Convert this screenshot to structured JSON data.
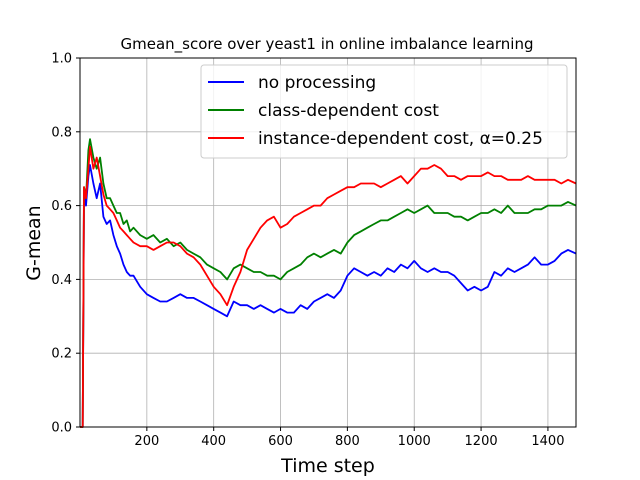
{
  "chart_data": {
    "type": "line",
    "title": "Gmean_score over yeast1 in online imbalance learning",
    "xlabel": "Time step",
    "ylabel": "G-mean",
    "xlim": [
      0,
      1484
    ],
    "ylim": [
      0.0,
      1.0
    ],
    "xticks": [
      200,
      400,
      600,
      800,
      1000,
      1200,
      1400
    ],
    "yticks": [
      0.0,
      0.2,
      0.4,
      0.6,
      0.8,
      1.0
    ],
    "grid": true,
    "legend_position": "top-right",
    "series": [
      {
        "name": "no processing",
        "color": "#0000ff",
        "x": [
          0,
          8,
          12,
          18,
          25,
          30,
          40,
          50,
          60,
          70,
          80,
          90,
          100,
          110,
          120,
          130,
          140,
          150,
          160,
          180,
          200,
          220,
          240,
          260,
          280,
          300,
          320,
          340,
          360,
          380,
          400,
          420,
          440,
          460,
          480,
          500,
          520,
          540,
          560,
          580,
          600,
          620,
          640,
          660,
          680,
          700,
          720,
          740,
          760,
          780,
          800,
          820,
          840,
          860,
          880,
          900,
          920,
          940,
          960,
          980,
          1000,
          1020,
          1040,
          1060,
          1080,
          1100,
          1120,
          1140,
          1160,
          1180,
          1200,
          1220,
          1240,
          1260,
          1280,
          1300,
          1320,
          1340,
          1360,
          1380,
          1400,
          1420,
          1440,
          1460,
          1484
        ],
        "y": [
          0.0,
          0.0,
          0.63,
          0.6,
          0.68,
          0.71,
          0.66,
          0.62,
          0.66,
          0.57,
          0.55,
          0.56,
          0.52,
          0.49,
          0.47,
          0.44,
          0.42,
          0.41,
          0.41,
          0.38,
          0.36,
          0.35,
          0.34,
          0.34,
          0.35,
          0.36,
          0.35,
          0.35,
          0.34,
          0.33,
          0.32,
          0.31,
          0.3,
          0.34,
          0.33,
          0.33,
          0.32,
          0.33,
          0.32,
          0.31,
          0.32,
          0.31,
          0.31,
          0.33,
          0.32,
          0.34,
          0.35,
          0.36,
          0.35,
          0.37,
          0.41,
          0.43,
          0.42,
          0.41,
          0.42,
          0.41,
          0.43,
          0.42,
          0.44,
          0.43,
          0.45,
          0.43,
          0.42,
          0.43,
          0.42,
          0.42,
          0.41,
          0.39,
          0.37,
          0.38,
          0.37,
          0.38,
          0.42,
          0.41,
          0.43,
          0.42,
          0.43,
          0.44,
          0.46,
          0.44,
          0.44,
          0.45,
          0.47,
          0.48,
          0.47
        ]
      },
      {
        "name": "class-dependent cost",
        "color": "#008000",
        "x": [
          0,
          8,
          12,
          18,
          25,
          30,
          40,
          50,
          60,
          70,
          80,
          90,
          100,
          110,
          120,
          130,
          140,
          150,
          160,
          180,
          200,
          220,
          240,
          260,
          280,
          300,
          320,
          340,
          360,
          380,
          400,
          420,
          440,
          460,
          480,
          500,
          520,
          540,
          560,
          580,
          600,
          620,
          640,
          660,
          680,
          700,
          720,
          740,
          760,
          780,
          800,
          820,
          840,
          860,
          880,
          900,
          920,
          940,
          960,
          980,
          1000,
          1020,
          1040,
          1060,
          1080,
          1100,
          1120,
          1140,
          1160,
          1180,
          1200,
          1220,
          1240,
          1260,
          1280,
          1300,
          1320,
          1340,
          1360,
          1380,
          1400,
          1420,
          1440,
          1460,
          1484
        ],
        "y": [
          0.0,
          0.0,
          0.65,
          0.62,
          0.75,
          0.78,
          0.73,
          0.7,
          0.73,
          0.66,
          0.62,
          0.62,
          0.6,
          0.58,
          0.58,
          0.55,
          0.56,
          0.53,
          0.54,
          0.52,
          0.51,
          0.52,
          0.5,
          0.51,
          0.49,
          0.5,
          0.48,
          0.47,
          0.46,
          0.44,
          0.43,
          0.42,
          0.4,
          0.43,
          0.44,
          0.43,
          0.42,
          0.42,
          0.41,
          0.41,
          0.4,
          0.42,
          0.43,
          0.44,
          0.46,
          0.47,
          0.46,
          0.47,
          0.48,
          0.47,
          0.5,
          0.52,
          0.53,
          0.54,
          0.55,
          0.56,
          0.56,
          0.57,
          0.58,
          0.59,
          0.58,
          0.59,
          0.6,
          0.58,
          0.58,
          0.58,
          0.57,
          0.57,
          0.56,
          0.57,
          0.58,
          0.58,
          0.59,
          0.58,
          0.6,
          0.58,
          0.58,
          0.58,
          0.59,
          0.59,
          0.6,
          0.6,
          0.6,
          0.61,
          0.6
        ]
      },
      {
        "name": "instance-dependent cost, α=0.25",
        "color": "#ff0000",
        "x": [
          0,
          8,
          12,
          18,
          25,
          30,
          40,
          50,
          60,
          70,
          80,
          90,
          100,
          110,
          120,
          130,
          140,
          150,
          160,
          180,
          200,
          220,
          240,
          260,
          280,
          300,
          320,
          340,
          360,
          380,
          400,
          420,
          440,
          460,
          480,
          500,
          520,
          540,
          560,
          580,
          600,
          620,
          640,
          660,
          680,
          700,
          720,
          740,
          760,
          780,
          800,
          820,
          840,
          860,
          880,
          900,
          920,
          940,
          960,
          980,
          1000,
          1020,
          1040,
          1060,
          1080,
          1100,
          1120,
          1140,
          1160,
          1180,
          1200,
          1220,
          1240,
          1260,
          1280,
          1300,
          1320,
          1340,
          1360,
          1380,
          1400,
          1420,
          1440,
          1460,
          1484
        ],
        "y": [
          0.0,
          0.0,
          0.65,
          0.62,
          0.7,
          0.76,
          0.7,
          0.73,
          0.68,
          0.63,
          0.6,
          0.59,
          0.58,
          0.56,
          0.54,
          0.53,
          0.52,
          0.51,
          0.5,
          0.49,
          0.49,
          0.48,
          0.49,
          0.5,
          0.5,
          0.49,
          0.47,
          0.46,
          0.44,
          0.41,
          0.38,
          0.36,
          0.33,
          0.38,
          0.42,
          0.48,
          0.51,
          0.54,
          0.56,
          0.57,
          0.54,
          0.55,
          0.57,
          0.58,
          0.59,
          0.6,
          0.6,
          0.62,
          0.63,
          0.64,
          0.65,
          0.65,
          0.66,
          0.66,
          0.66,
          0.65,
          0.66,
          0.67,
          0.68,
          0.66,
          0.68,
          0.7,
          0.7,
          0.71,
          0.7,
          0.68,
          0.68,
          0.67,
          0.68,
          0.68,
          0.68,
          0.69,
          0.68,
          0.68,
          0.67,
          0.67,
          0.67,
          0.68,
          0.67,
          0.67,
          0.67,
          0.67,
          0.66,
          0.67,
          0.66
        ]
      }
    ]
  }
}
